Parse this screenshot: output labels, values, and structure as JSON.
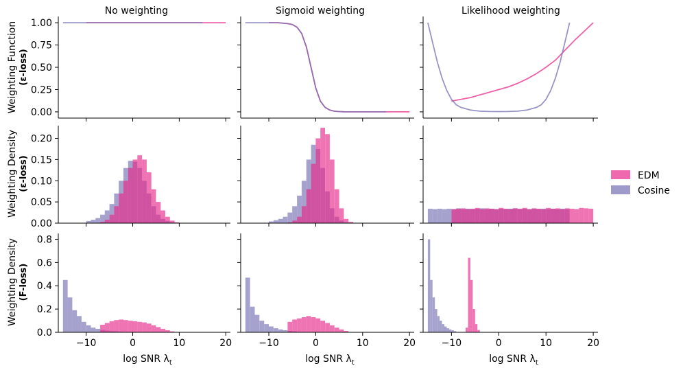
{
  "figure": {
    "col_titles": [
      "No weighting",
      "Sigmoid weighting",
      "Likelihood weighting"
    ],
    "row_labels": [
      {
        "line1": "Weighting Function",
        "line2": "(ε-loss)"
      },
      {
        "line1": "Weighting Density",
        "line2": "(ε-loss)"
      },
      {
        "line1": "Weighting Density",
        "line2": "(F-loss)"
      }
    ],
    "xlabel": "log SNR λ",
    "xlabel_sub": "t",
    "x_ticks": [
      -10,
      0,
      10,
      20
    ],
    "x_tick_labels": [
      "−10",
      "0",
      "10",
      "20"
    ],
    "y_ticks": [
      {
        "values": [
          0.0,
          0.25,
          0.5,
          0.75,
          1.0
        ],
        "labels": [
          "0.00",
          "0.25",
          "0.50",
          "0.75",
          "1.00"
        ]
      },
      {
        "values": [
          0.0,
          0.05,
          0.1,
          0.15,
          0.2
        ],
        "labels": [
          "0.00",
          "0.05",
          "0.10",
          "0.15",
          "0.20"
        ]
      },
      {
        "values": [
          0.0,
          0.2,
          0.4,
          0.6,
          0.8
        ],
        "labels": [
          "0.0",
          "0.2",
          "0.4",
          "0.6",
          "0.8"
        ]
      }
    ]
  },
  "legend": {
    "placement": "right",
    "entries": [
      {
        "label": "EDM",
        "color": "#e7298a"
      },
      {
        "label": "Cosine",
        "color": "#7570b3"
      }
    ]
  },
  "chart_data": [
    {
      "type": "line",
      "panel": "row1-col1",
      "xlim": [
        -16,
        21
      ],
      "ylim": [
        -0.07,
        1.07
      ],
      "series": [
        {
          "name": "EDM",
          "color": "#e7298a",
          "x": [
            -10,
            20
          ],
          "y": [
            1.0,
            1.0
          ]
        },
        {
          "name": "Cosine",
          "color": "#7570b3",
          "x": [
            -15,
            15
          ],
          "y": [
            1.0,
            1.0
          ]
        }
      ]
    },
    {
      "type": "line",
      "panel": "row1-col2",
      "xlim": [
        -16,
        21
      ],
      "ylim": [
        -0.07,
        1.07
      ],
      "series": [
        {
          "name": "EDM",
          "color": "#e7298a",
          "x": [
            -10,
            -8,
            -6,
            -5,
            -4,
            -3,
            -2,
            -1,
            0,
            1,
            2,
            3,
            4,
            5,
            6,
            8,
            10,
            15,
            20
          ],
          "y": [
            1.0,
            1.0,
            0.99,
            0.98,
            0.95,
            0.88,
            0.73,
            0.5,
            0.27,
            0.12,
            0.05,
            0.02,
            0.007,
            0.003,
            0.001,
            0.0,
            0.0,
            0.0,
            0.0
          ]
        },
        {
          "name": "Cosine",
          "color": "#7570b3",
          "x": [
            -15,
            -12,
            -10,
            -8,
            -6,
            -5,
            -4,
            -3,
            -2,
            -1,
            0,
            1,
            2,
            3,
            4,
            5,
            6,
            8,
            10,
            15
          ],
          "y": [
            1.0,
            1.0,
            1.0,
            1.0,
            0.99,
            0.98,
            0.95,
            0.88,
            0.73,
            0.5,
            0.27,
            0.12,
            0.05,
            0.02,
            0.007,
            0.003,
            0.001,
            0.0,
            0.0,
            0.0
          ]
        }
      ]
    },
    {
      "type": "line",
      "panel": "row1-col3",
      "xlim": [
        -16,
        21
      ],
      "ylim": [
        -0.07,
        1.07
      ],
      "series": [
        {
          "name": "EDM",
          "color": "#e7298a",
          "x": [
            -10,
            -6,
            -2,
            0,
            2,
            4,
            6,
            8,
            10,
            12,
            14,
            16,
            18,
            20
          ],
          "y": [
            0.12,
            0.16,
            0.22,
            0.25,
            0.28,
            0.32,
            0.37,
            0.43,
            0.5,
            0.58,
            0.69,
            0.8,
            0.9,
            1.0
          ]
        },
        {
          "name": "Cosine",
          "color": "#7570b3",
          "x": [
            -15,
            -14,
            -13,
            -12,
            -11,
            -10,
            -9,
            -8,
            -6,
            -4,
            -2,
            0,
            2,
            4,
            6,
            8,
            9,
            10,
            11,
            12,
            13,
            14,
            15
          ],
          "y": [
            1.0,
            0.78,
            0.56,
            0.38,
            0.24,
            0.14,
            0.08,
            0.05,
            0.02,
            0.008,
            0.004,
            0.003,
            0.004,
            0.008,
            0.02,
            0.05,
            0.08,
            0.14,
            0.24,
            0.38,
            0.56,
            0.78,
            1.0
          ]
        }
      ]
    },
    {
      "type": "histogram",
      "panel": "row2-col1",
      "xlim": [
        -16,
        21
      ],
      "ylim": [
        0,
        0.23
      ],
      "series": [
        {
          "name": "Cosine",
          "color": "#7570b3",
          "bin_start": -10,
          "bin_width": 1,
          "values": [
            0.005,
            0.008,
            0.012,
            0.02,
            0.03,
            0.045,
            0.07,
            0.1,
            0.13,
            0.147,
            0.145,
            0.13,
            0.1,
            0.07,
            0.04,
            0.02,
            0.01,
            0.005,
            0.002,
            0.001
          ]
        },
        {
          "name": "EDM",
          "color": "#e7298a",
          "bin_start": -8,
          "bin_width": 1,
          "values": [
            0.001,
            0.003,
            0.008,
            0.02,
            0.04,
            0.07,
            0.1,
            0.13,
            0.15,
            0.16,
            0.15,
            0.12,
            0.08,
            0.05,
            0.03,
            0.015,
            0.006,
            0.002
          ]
        }
      ]
    },
    {
      "type": "histogram",
      "panel": "row2-col2",
      "xlim": [
        -16,
        21
      ],
      "ylim": [
        0,
        0.23
      ],
      "series": [
        {
          "name": "Cosine",
          "color": "#7570b3",
          "bin_start": -10,
          "bin_width": 1,
          "values": [
            0.004,
            0.007,
            0.01,
            0.015,
            0.025,
            0.04,
            0.065,
            0.1,
            0.15,
            0.185,
            0.175,
            0.13,
            0.075,
            0.035,
            0.015,
            0.006,
            0.002
          ]
        },
        {
          "name": "EDM",
          "color": "#e7298a",
          "bin_start": -6,
          "bin_width": 1,
          "values": [
            0.002,
            0.006,
            0.015,
            0.04,
            0.08,
            0.14,
            0.2,
            0.225,
            0.21,
            0.15,
            0.08,
            0.035,
            0.01,
            0.003
          ]
        }
      ]
    },
    {
      "type": "histogram",
      "panel": "row2-col3",
      "xlim": [
        -16,
        21
      ],
      "ylim": [
        0,
        0.23
      ],
      "series": [
        {
          "name": "Cosine",
          "color": "#7570b3",
          "bin_start": -15,
          "bin_width": 1,
          "values": [
            0.034,
            0.033,
            0.034,
            0.033,
            0.034,
            0.033,
            0.035,
            0.033,
            0.034,
            0.033,
            0.034,
            0.035,
            0.033,
            0.034,
            0.033,
            0.034,
            0.033,
            0.034,
            0.035,
            0.033,
            0.034,
            0.033,
            0.034,
            0.033,
            0.034,
            0.033,
            0.034,
            0.033,
            0.034,
            0.033
          ]
        },
        {
          "name": "EDM",
          "color": "#e7298a",
          "bin_start": -10,
          "bin_width": 1,
          "values": [
            0.033,
            0.034,
            0.035,
            0.033,
            0.034,
            0.036,
            0.033,
            0.035,
            0.034,
            0.033,
            0.036,
            0.034,
            0.033,
            0.035,
            0.034,
            0.036,
            0.033,
            0.035,
            0.034,
            0.033,
            0.036,
            0.034,
            0.035,
            0.033,
            0.035,
            0.034,
            0.033,
            0.036,
            0.035,
            0.034
          ]
        }
      ]
    },
    {
      "type": "histogram",
      "panel": "row3-col1",
      "xlim": [
        -16,
        21
      ],
      "ylim": [
        0,
        0.85
      ],
      "series": [
        {
          "name": "Cosine",
          "color": "#7570b3",
          "bin_start": -15,
          "bin_width": 1,
          "values": [
            0.45,
            0.3,
            0.19,
            0.14,
            0.09,
            0.06,
            0.04,
            0.03,
            0.02,
            0.015,
            0.01,
            0.008,
            0.006,
            0.004,
            0.003,
            0.002
          ]
        },
        {
          "name": "EDM",
          "color": "#e7298a",
          "bin_start": -7,
          "bin_width": 1,
          "values": [
            0.065,
            0.08,
            0.095,
            0.105,
            0.11,
            0.105,
            0.1,
            0.095,
            0.09,
            0.085,
            0.075,
            0.06,
            0.045,
            0.03,
            0.018,
            0.008
          ]
        }
      ]
    },
    {
      "type": "histogram",
      "panel": "row3-col2",
      "xlim": [
        -16,
        21
      ],
      "ylim": [
        0,
        0.85
      ],
      "series": [
        {
          "name": "Cosine",
          "color": "#7570b3",
          "bin_start": -15,
          "bin_width": 1,
          "values": [
            0.47,
            0.22,
            0.15,
            0.1,
            0.07,
            0.05,
            0.035,
            0.025,
            0.018,
            0.012,
            0.008,
            0.005,
            0.003,
            0.002
          ]
        },
        {
          "name": "EDM",
          "color": "#e7298a",
          "bin_start": -6,
          "bin_width": 1,
          "values": [
            0.09,
            0.11,
            0.12,
            0.13,
            0.14,
            0.13,
            0.12,
            0.1,
            0.08,
            0.06,
            0.04,
            0.025,
            0.012
          ]
        }
      ]
    },
    {
      "type": "histogram",
      "panel": "row3-col3",
      "xlim": [
        -16,
        21
      ],
      "ylim": [
        0,
        0.85
      ],
      "series": [
        {
          "name": "Cosine",
          "color": "#7570b3",
          "bin_start": -15,
          "bin_width": 0.5,
          "values": [
            0.8,
            0.45,
            0.3,
            0.2,
            0.14,
            0.1,
            0.07,
            0.05,
            0.035,
            0.025,
            0.018,
            0.01
          ]
        },
        {
          "name": "EDM",
          "color": "#e7298a",
          "bin_start": -7,
          "bin_width": 0.5,
          "values": [
            0.04,
            0.64,
            0.45,
            0.2,
            0.07,
            0.02
          ]
        }
      ]
    }
  ]
}
